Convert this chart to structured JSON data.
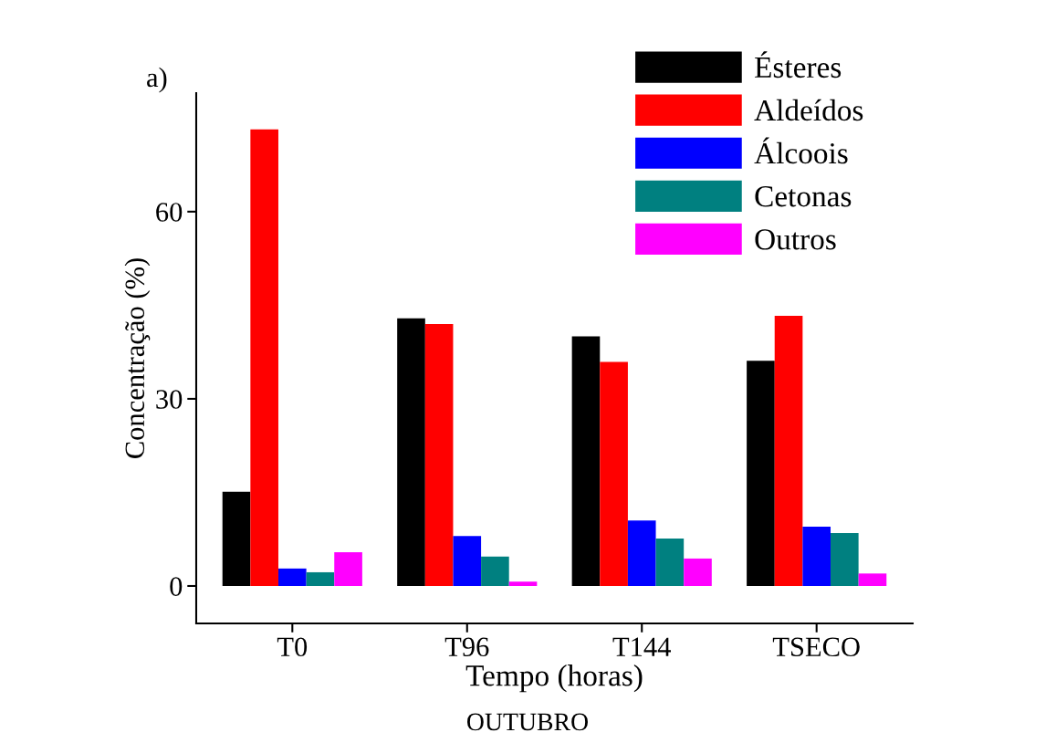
{
  "chart_data": {
    "type": "bar",
    "xlabel": "Tempo (horas)",
    "ylabel": "Concentração (%)",
    "categories": [
      "T0",
      "T96",
      "T144",
      "TSECO"
    ],
    "series": [
      {
        "name": "Ésteres",
        "color": "#000000",
        "values": [
          15.1,
          42.9,
          40.0,
          36.1
        ]
      },
      {
        "name": "Aldeídos",
        "color": "#ff0000",
        "values": [
          73.2,
          42.0,
          35.9,
          43.3
        ]
      },
      {
        "name": "Álcoois",
        "color": "#0000ff",
        "values": [
          2.8,
          8.0,
          10.5,
          9.5
        ]
      },
      {
        "name": "Cetonas",
        "color": "#008080",
        "values": [
          2.2,
          4.7,
          7.6,
          8.5
        ]
      },
      {
        "name": "Outros",
        "color": "#ff00ff",
        "values": [
          5.4,
          0.7,
          4.4,
          2.0
        ]
      }
    ],
    "ylim": [
      -6,
      79
    ],
    "yticks": [
      0,
      30,
      60
    ],
    "grid": false,
    "legend": "top right",
    "annotations": [
      "a)",
      "OUTUBRO"
    ]
  }
}
